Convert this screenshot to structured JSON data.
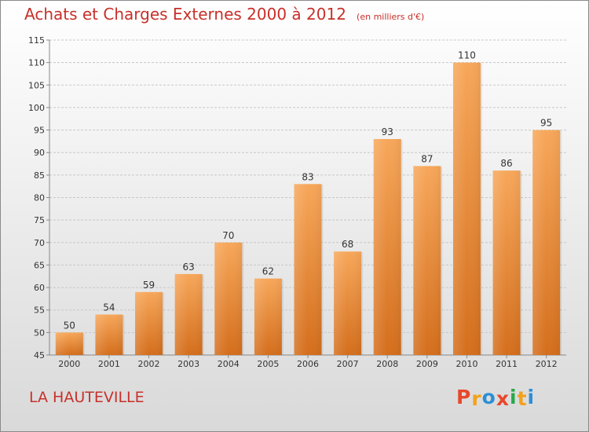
{
  "header": {
    "title": "Achats et Charges Externes 2000 à 2012",
    "subtitle": "(en milliers d'€)"
  },
  "footer": {
    "commune": "LA HAUTEVILLE",
    "logo_text": "Proxiti",
    "logo_colors": [
      "#e8472b",
      "#f2a21b",
      "#2c8fd6",
      "#e8472b",
      "#2aa84a",
      "#f2a21b",
      "#2c8fd6"
    ]
  },
  "colors": {
    "bar_top": "#f7a75a",
    "bar_bottom": "#d46e1c",
    "text": "#333333",
    "title": "#c8302a"
  },
  "chart_data": {
    "type": "bar",
    "title": "Achats et Charges Externes 2000 à 2012",
    "subtitle": "(en milliers d'€)",
    "categories": [
      "2000",
      "2001",
      "2002",
      "2003",
      "2004",
      "2005",
      "2006",
      "2007",
      "2008",
      "2009",
      "2010",
      "2011",
      "2012"
    ],
    "values": [
      50,
      54,
      59,
      63,
      70,
      62,
      83,
      68,
      93,
      87,
      110,
      86,
      95
    ],
    "ylim": [
      45,
      115
    ],
    "yticks": [
      45,
      50,
      55,
      60,
      65,
      70,
      75,
      80,
      85,
      90,
      95,
      100,
      105,
      110,
      115
    ],
    "grid": true,
    "data_labels": true
  }
}
